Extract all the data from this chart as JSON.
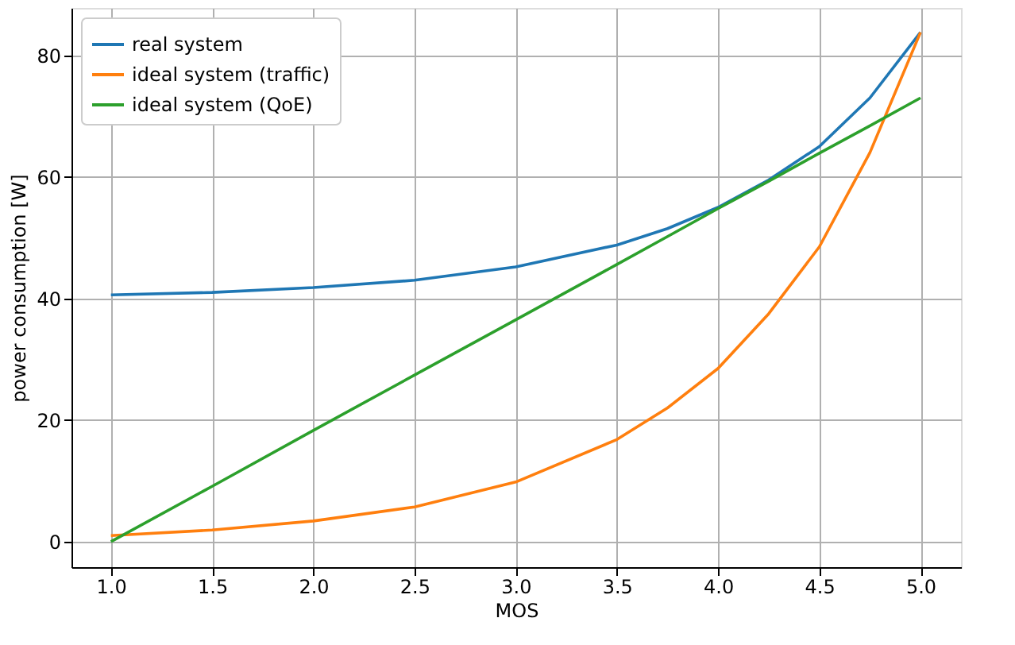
{
  "chart_data": {
    "type": "line",
    "xlabel": "MOS",
    "ylabel": "power consumption [W]",
    "xlim": [
      0.805,
      5.2
    ],
    "xticks": [
      {
        "value": 1,
        "label": "1.0"
      },
      {
        "value": 1.5,
        "label": "1.5"
      },
      {
        "value": 2,
        "label": "2.0"
      },
      {
        "value": 2.5,
        "label": "2.5"
      },
      {
        "value": 3,
        "label": "3.0"
      },
      {
        "value": 3.5,
        "label": "3.5"
      },
      {
        "value": 4,
        "label": "4.0"
      },
      {
        "value": 4.5,
        "label": "4.5"
      },
      {
        "value": 5,
        "label": "5.0"
      }
    ],
    "ylim": [
      -4.2,
      87.8
    ],
    "yticks": [
      0,
      20,
      40,
      60,
      80
    ],
    "grid": true,
    "legend": "top left",
    "x": [
      1,
      1.5,
      2,
      2.5,
      3,
      3.5,
      3.75,
      4,
      4.25,
      4.5,
      4.75,
      5
    ],
    "series": [
      {
        "name": "real system",
        "color": "#1f77b4",
        "values": [
          40.6,
          41,
          41.8,
          43,
          45.2,
          48.8,
          51.5,
          55,
          59.5,
          65,
          73,
          83.8
        ]
      },
      {
        "name": "ideal system (traffic)",
        "color": "#ff7f0e",
        "values": [
          1.0,
          1.9,
          3.4,
          5.7,
          9.8,
          16.8,
          22,
          28.5,
          37.5,
          48.5,
          64,
          83.8
        ]
      },
      {
        "name": "ideal system (QoE)",
        "color": "#2ca02c",
        "values": [
          0,
          9.1,
          18.3,
          27.4,
          36.5,
          45.6,
          50.2,
          54.8,
          59.3,
          63.9,
          68.4,
          73
        ]
      }
    ]
  }
}
